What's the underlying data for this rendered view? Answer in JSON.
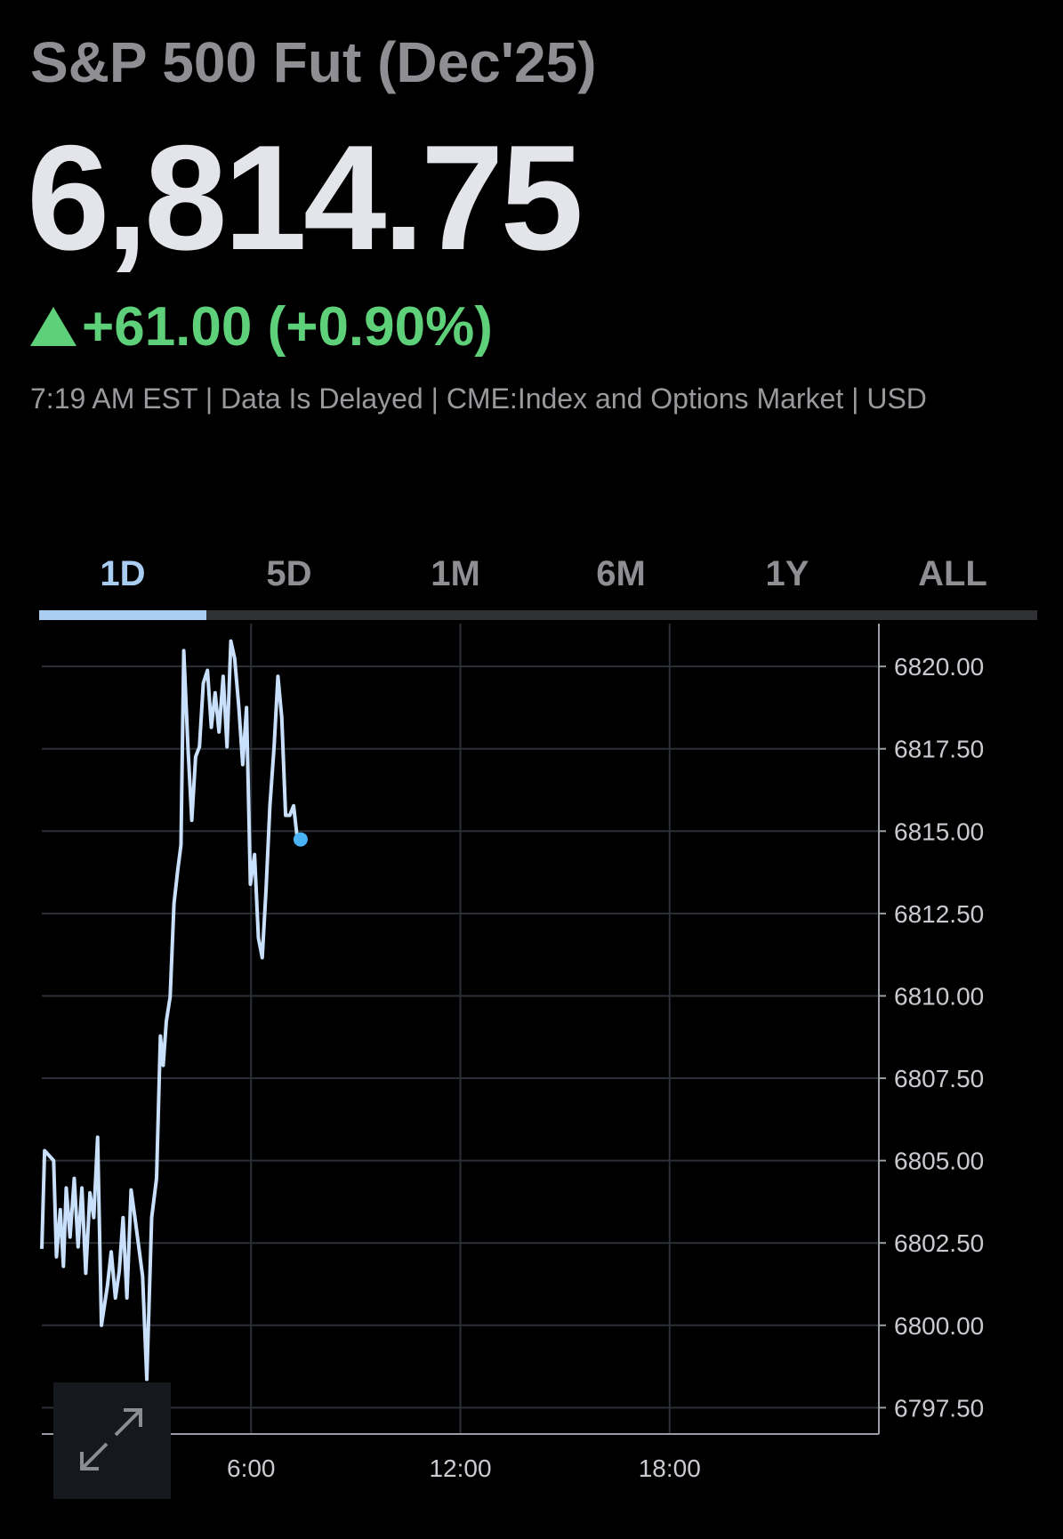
{
  "header": {
    "title": "S&P 500 Fut (Dec'25)",
    "price": "6,814.75",
    "change": "+61.00 (+0.90%)",
    "info": "7:19 AM EST | Data Is Delayed | CME:Index and Options Market | USD"
  },
  "tabs": [
    "1D",
    "5D",
    "1M",
    "6M",
    "1Y",
    "ALL"
  ],
  "chart_data": {
    "type": "line",
    "color": "#c8e0fb",
    "x": [
      0.0,
      0.08,
      0.34,
      0.42,
      0.53,
      0.62,
      0.7,
      0.81,
      0.93,
      1.04,
      1.15,
      1.26,
      1.38,
      1.49,
      1.6,
      1.71,
      1.88,
      1.99,
      2.11,
      2.22,
      2.33,
      2.44,
      2.56,
      2.67,
      2.78,
      2.89,
      3.01,
      3.15,
      3.29,
      3.4,
      3.48,
      3.57,
      3.68,
      3.79,
      3.9,
      3.99,
      4.07,
      4.19,
      4.3,
      4.41,
      4.52,
      4.63,
      4.75,
      4.86,
      4.97,
      5.08,
      5.2,
      5.31,
      5.42,
      5.53,
      5.65,
      5.76,
      5.87,
      5.98,
      6.1,
      6.21,
      6.32,
      6.43,
      6.54,
      6.66,
      6.77,
      6.88,
      6.99,
      7.11,
      7.22,
      7.33,
      7.42
    ],
    "values": [
      6802.32,
      6805.3,
      6805.0,
      6802.08,
      6803.51,
      6801.79,
      6804.17,
      6802.68,
      6804.46,
      6802.38,
      6804.17,
      6801.58,
      6804.02,
      6803.27,
      6805.71,
      6800.0,
      6801.19,
      6802.23,
      6800.83,
      6801.64,
      6803.27,
      6800.83,
      6804.11,
      6803.27,
      6802.38,
      6801.49,
      6798.36,
      6803.27,
      6804.46,
      6808.78,
      6807.89,
      6809.23,
      6809.97,
      6812.8,
      6813.84,
      6814.58,
      6820.48,
      6817.56,
      6815.33,
      6817.26,
      6817.56,
      6819.49,
      6819.88,
      6818.15,
      6819.2,
      6818.01,
      6819.7,
      6817.56,
      6820.77,
      6820.24,
      6818.75,
      6817.02,
      6818.75,
      6813.39,
      6814.29,
      6811.76,
      6811.16,
      6813.24,
      6815.77,
      6817.56,
      6819.7,
      6818.45,
      6815.48,
      6815.48,
      6815.77,
      6814.73,
      6814.75
    ],
    "xlim": [
      0,
      24
    ],
    "xticks": [
      {
        "value": 6,
        "label": "6:00"
      },
      {
        "value": 12,
        "label": "12:00"
      },
      {
        "value": 18,
        "label": "18:00"
      }
    ],
    "ylim": [
      6796.7,
      6821.3
    ],
    "yticks": [
      {
        "value": 6797.5,
        "label": "6797.50"
      },
      {
        "value": 6800,
        "label": "6800.00"
      },
      {
        "value": 6802.5,
        "label": "6802.50"
      },
      {
        "value": 6805,
        "label": "6805.00"
      },
      {
        "value": 6807.5,
        "label": "6807.50"
      },
      {
        "value": 6810,
        "label": "6810.00"
      },
      {
        "value": 6812.5,
        "label": "6812.50"
      },
      {
        "value": 6815,
        "label": "6815.00"
      },
      {
        "value": 6817.5,
        "label": "6817.50"
      },
      {
        "value": 6820,
        "label": "6820.00"
      }
    ],
    "grid": true
  }
}
